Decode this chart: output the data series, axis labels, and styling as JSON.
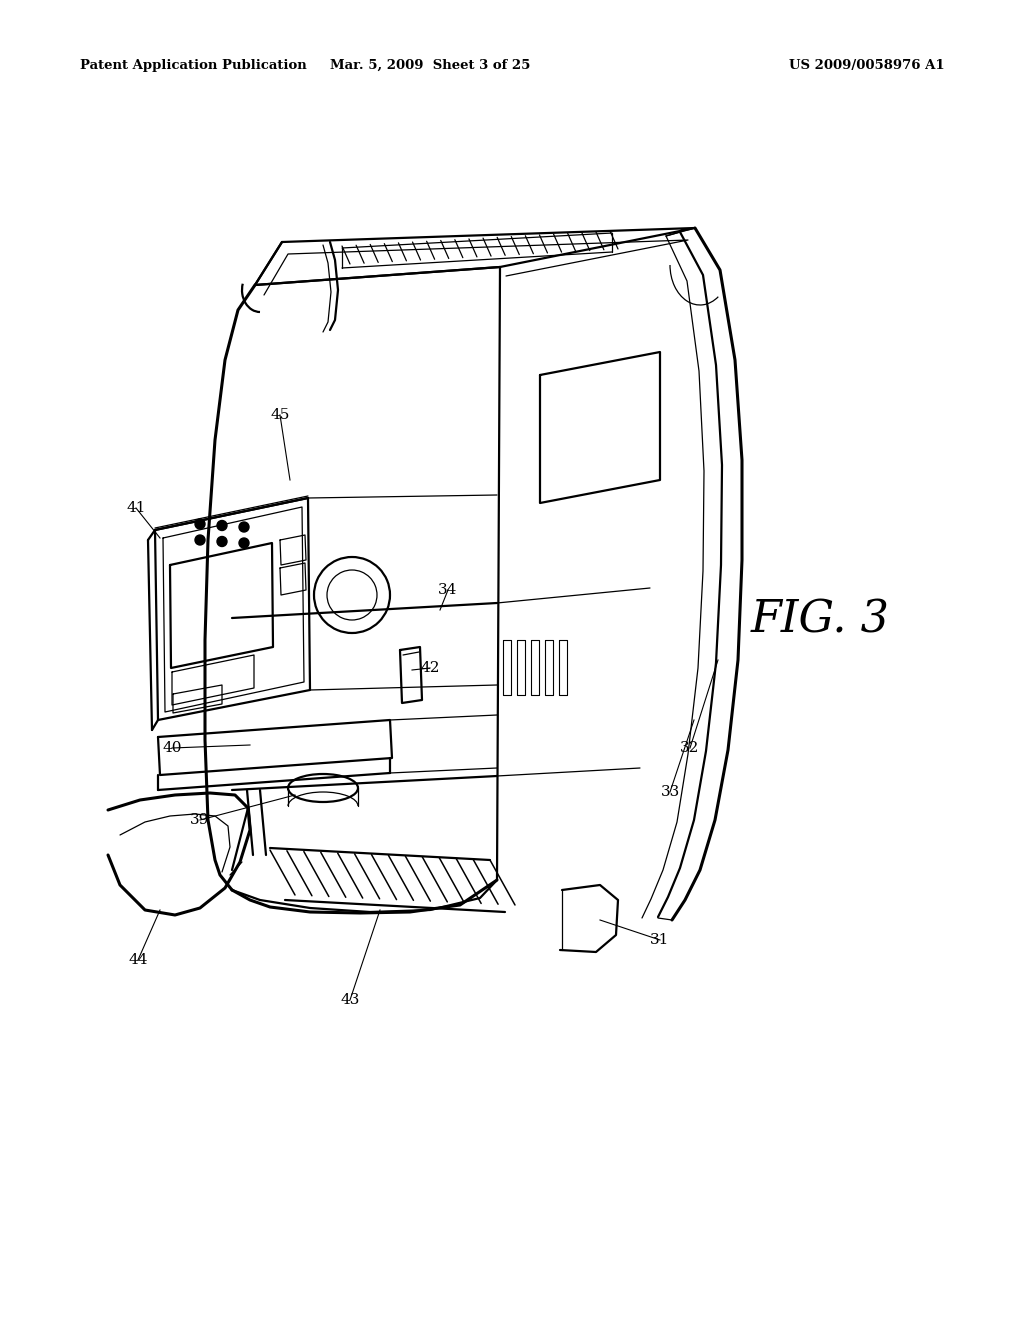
{
  "background_color": "#ffffff",
  "header_left": "Patent Application Publication",
  "header_center": "Mar. 5, 2009  Sheet 3 of 25",
  "header_right": "US 2009/0058976 A1",
  "fig_label": "FIG. 3",
  "lw_main": 1.6,
  "lw_thin": 0.9,
  "lw_thick": 2.2
}
